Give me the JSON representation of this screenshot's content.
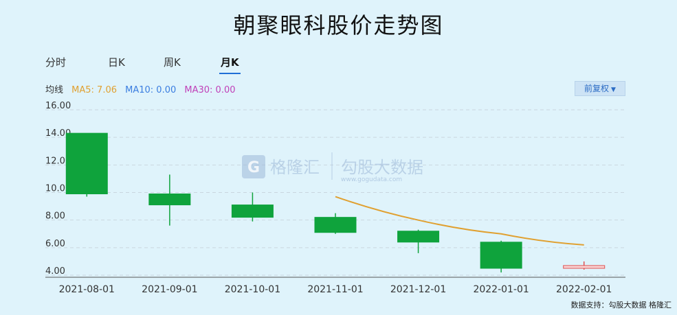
{
  "title": "朝聚眼科股价走势图",
  "tabs": [
    {
      "label": "分时",
      "active": false
    },
    {
      "label": "日K",
      "active": false
    },
    {
      "label": "周K",
      "active": false
    },
    {
      "label": "月K",
      "active": true
    }
  ],
  "ma": {
    "label": "均线",
    "ma5": "MA5: 7.06",
    "ma10": "MA10: 0.00",
    "ma30": "MA30: 0.00",
    "colors": {
      "ma5": "#e0a030",
      "ma10": "#3a7de0",
      "ma30": "#c040b8"
    }
  },
  "adjust_button": {
    "label": "前复权"
  },
  "watermark": {
    "brand1": "格隆汇",
    "brand2": "勾股大数据",
    "url": "www.gogudata.com"
  },
  "footer": "数据支持：勾股大数据 格隆汇",
  "chart_data": {
    "type": "candlestick",
    "ylim": [
      4.0,
      16.0
    ],
    "yticks": [
      "4.00",
      "6.00",
      "8.00",
      "10.00",
      "12.00",
      "14.00",
      "16.00"
    ],
    "categories": [
      "2021-08-01",
      "2021-09-01",
      "2021-10-01",
      "2021-11-01",
      "2021-12-01",
      "2022-01-01",
      "2022-02-01"
    ],
    "candles": [
      {
        "open": 14.3,
        "close": 9.9,
        "high": 14.3,
        "low": 9.7
      },
      {
        "open": 9.9,
        "close": 9.1,
        "high": 11.3,
        "low": 7.6
      },
      {
        "open": 9.1,
        "close": 8.2,
        "high": 10.0,
        "low": 7.9
      },
      {
        "open": 8.2,
        "close": 7.1,
        "high": 8.5,
        "low": 7.0
      },
      {
        "open": 7.2,
        "close": 6.4,
        "high": 7.3,
        "low": 5.6
      },
      {
        "open": 6.4,
        "close": 4.5,
        "high": 6.5,
        "low": 4.2
      },
      {
        "open": 4.5,
        "close": 4.7,
        "high": 5.0,
        "low": 4.4
      }
    ],
    "ma5_line": [
      null,
      null,
      null,
      9.7,
      8.0,
      7.0,
      6.2
    ],
    "colors": {
      "down": "#0fa33c",
      "up_fill": "#f8d4d4",
      "up_border": "#e05050",
      "ma5": "#e0a030",
      "grid": "#c9d6df",
      "axis_text": "#333"
    }
  }
}
